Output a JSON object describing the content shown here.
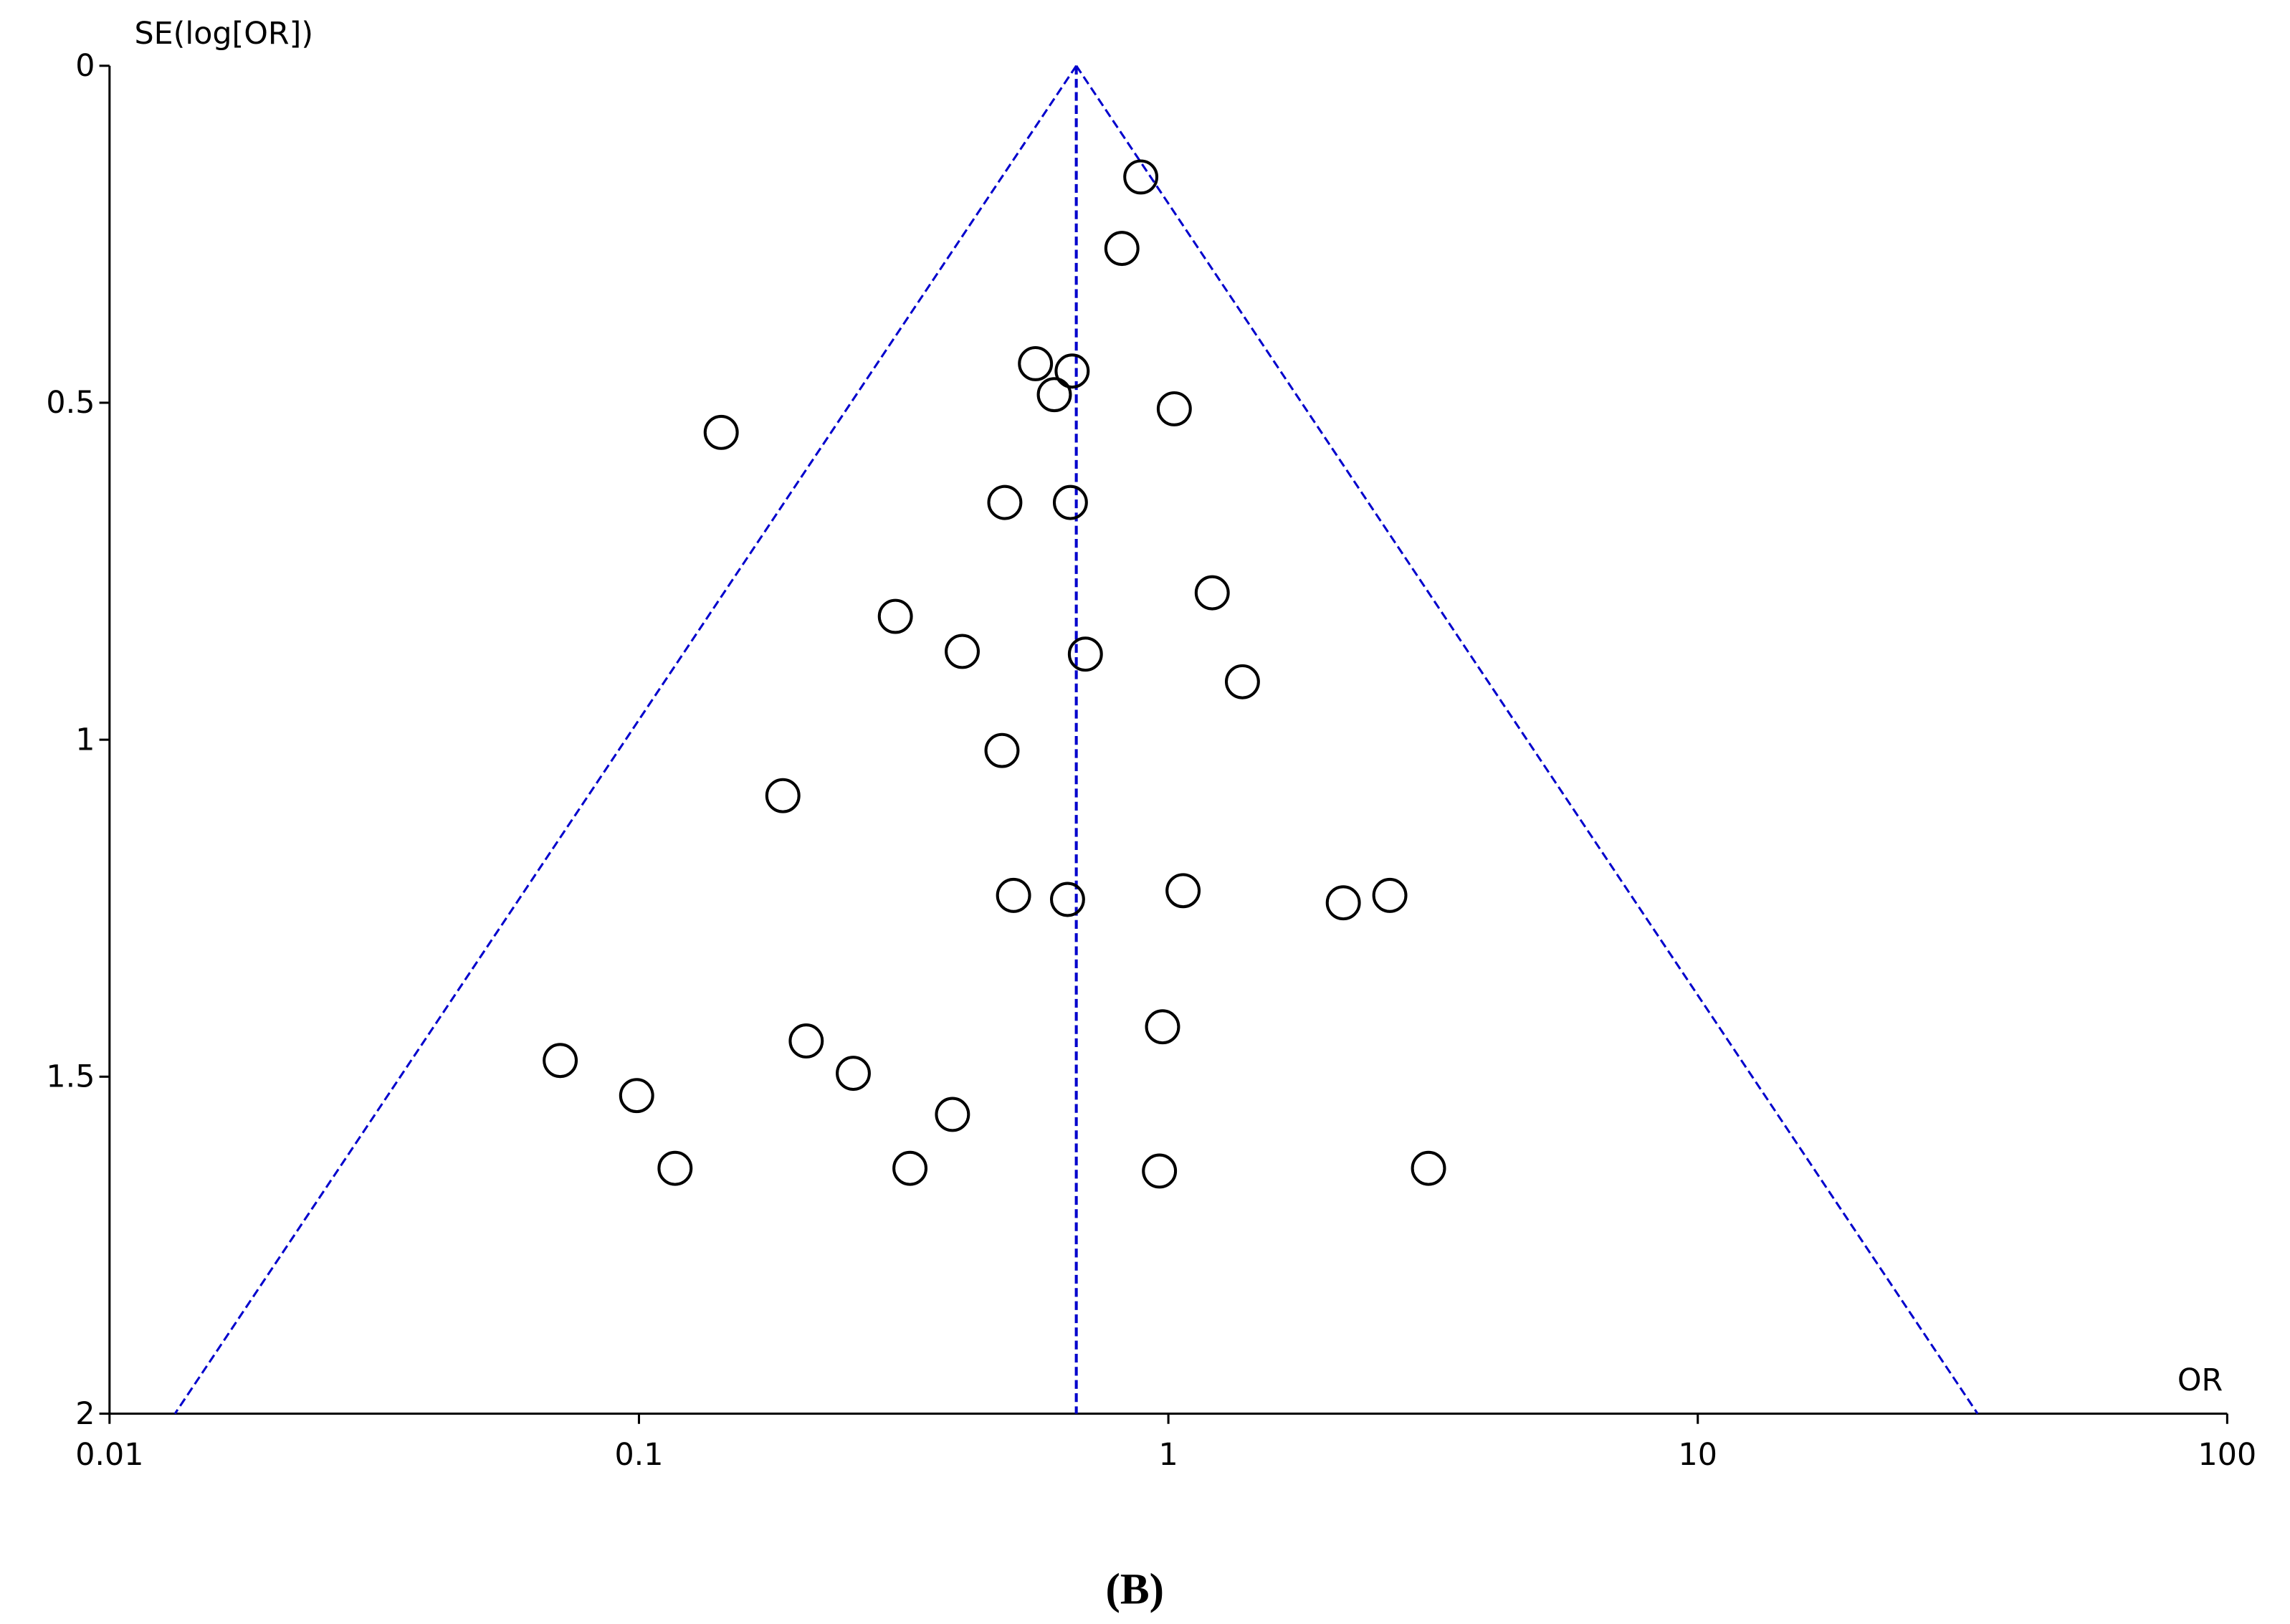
{
  "chart_data": {
    "type": "scatter",
    "caption": "(B)",
    "xlabel": "OR",
    "ylabel": "SE(log[OR])",
    "log_x": true,
    "y_reversed": true,
    "xlim": [
      0.01,
      100
    ],
    "xticks": [
      0.01,
      0.1,
      1,
      10,
      100
    ],
    "ylim": [
      0,
      2
    ],
    "yticks": [
      0,
      0.5,
      1,
      1.5,
      2
    ],
    "pooled_or": 0.67,
    "funnel_color": "#0000cc",
    "marker_color": "#000000",
    "x": [
      0.887,
      0.817,
      0.561,
      0.658,
      0.609,
      1.026,
      0.143,
      0.491,
      0.653,
      1.21,
      0.305,
      0.408,
      0.697,
      1.38,
      0.485,
      0.187,
      0.51,
      0.645,
      1.066,
      2.14,
      2.62,
      0.975,
      0.071,
      0.207,
      0.254,
      0.099,
      0.391,
      0.117,
      0.325,
      0.962,
      3.1
    ],
    "values": [
      0.165,
      0.271,
      0.442,
      0.453,
      0.488,
      0.509,
      0.544,
      0.648,
      0.648,
      0.782,
      0.817,
      0.869,
      0.873,
      0.914,
      1.016,
      1.083,
      1.231,
      1.237,
      1.224,
      1.242,
      1.231,
      1.426,
      1.476,
      1.447,
      1.495,
      1.528,
      1.556,
      1.636,
      1.636,
      1.64,
      1.636
    ]
  }
}
